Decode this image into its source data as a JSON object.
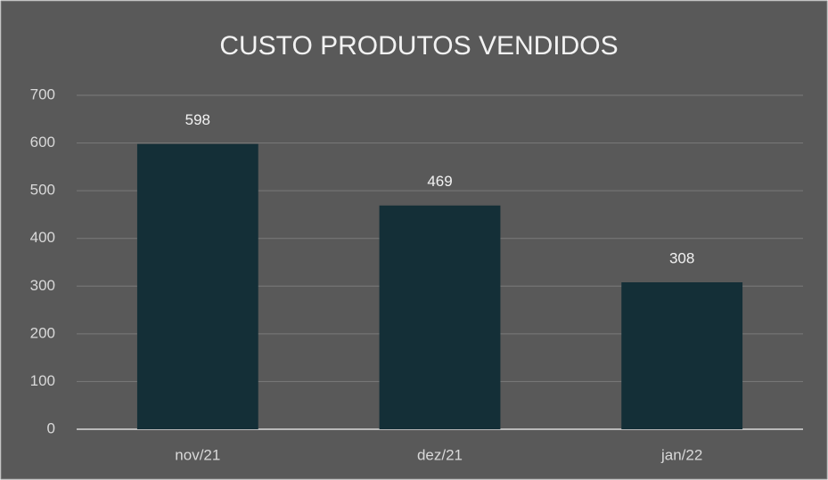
{
  "chart_data": {
    "type": "bar",
    "title": "CUSTO PRODUTOS VENDIDOS",
    "categories": [
      "nov/21",
      "dez/21",
      "jan/22"
    ],
    "values": [
      598,
      469,
      308
    ],
    "color": "#142f37",
    "ylim": [
      0,
      700
    ],
    "yticks": [
      0,
      100,
      200,
      300,
      400,
      500,
      600,
      700
    ],
    "grid": true
  }
}
